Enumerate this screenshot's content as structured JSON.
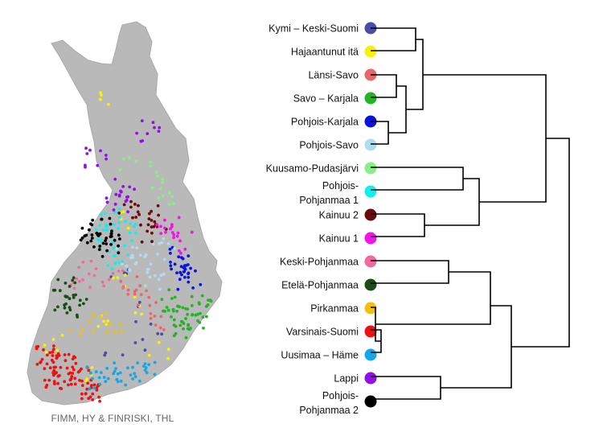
{
  "credit": "FIMM, HY & FINRISKI, THL",
  "colors": {
    "kymi": "#4b4ba8",
    "hajaantunut": "#f7f20a",
    "lansisavo": "#e8676b",
    "savokarjala": "#22b422",
    "pohjoiskarjala": "#0a14d8",
    "pohjoissavo": "#acdef0",
    "kuusamo": "#88ee88",
    "pohjoispohjanmaa1": "#11eef0",
    "kainuu2": "#6a0a0a",
    "kainuu1": "#f214e6",
    "keskipohjanmaa": "#ee6aa0",
    "etelapohjanmaa": "#1a4d16",
    "pirkanmaa": "#f2c10c",
    "varsinaissuomi": "#ee1111",
    "uusimaa": "#14a6ea",
    "lappi": "#9010e4",
    "pohjoispohjanmaa2": "#000000"
  },
  "clusters": [
    {
      "id": "kymi",
      "lines": [
        "Kymi – Keski-Suomi"
      ]
    },
    {
      "id": "hajaantunut",
      "lines": [
        "Hajaantunut itä"
      ]
    },
    {
      "id": "lansisavo",
      "lines": [
        "Länsi-Savo"
      ]
    },
    {
      "id": "savokarjala",
      "lines": [
        "Savo – Karjala"
      ]
    },
    {
      "id": "pohjoiskarjala",
      "lines": [
        "Pohjois-Karjala"
      ]
    },
    {
      "id": "pohjoissavo",
      "lines": [
        "Pohjois-Savo"
      ]
    },
    {
      "id": "kuusamo",
      "lines": [
        "Kuusamo-Pudasjärvi"
      ]
    },
    {
      "id": "pohjoispohjanmaa1",
      "lines": [
        "Pohjois-",
        "Pohjanmaa 1"
      ]
    },
    {
      "id": "kainuu2",
      "lines": [
        "Kainuu 2"
      ]
    },
    {
      "id": "kainuu1",
      "lines": [
        "Kainuu 1"
      ]
    },
    {
      "id": "keskipohjanmaa",
      "lines": [
        "Keski-Pohjanmaa"
      ]
    },
    {
      "id": "etelapohjanmaa",
      "lines": [
        "Etelä-Pohjanmaa"
      ]
    },
    {
      "id": "pirkanmaa",
      "lines": [
        "Pirkanmaa"
      ]
    },
    {
      "id": "varsinaissuomi",
      "lines": [
        "Varsinais-Suomi"
      ]
    },
    {
      "id": "uusimaa",
      "lines": [
        "Uusimaa – Häme"
      ]
    },
    {
      "id": "lappi",
      "lines": [
        "Lappi"
      ]
    },
    {
      "id": "pohjoispohjanmaa2",
      "lines": [
        "Pohjois-",
        "Pohjanmaa 2"
      ]
    }
  ]
}
